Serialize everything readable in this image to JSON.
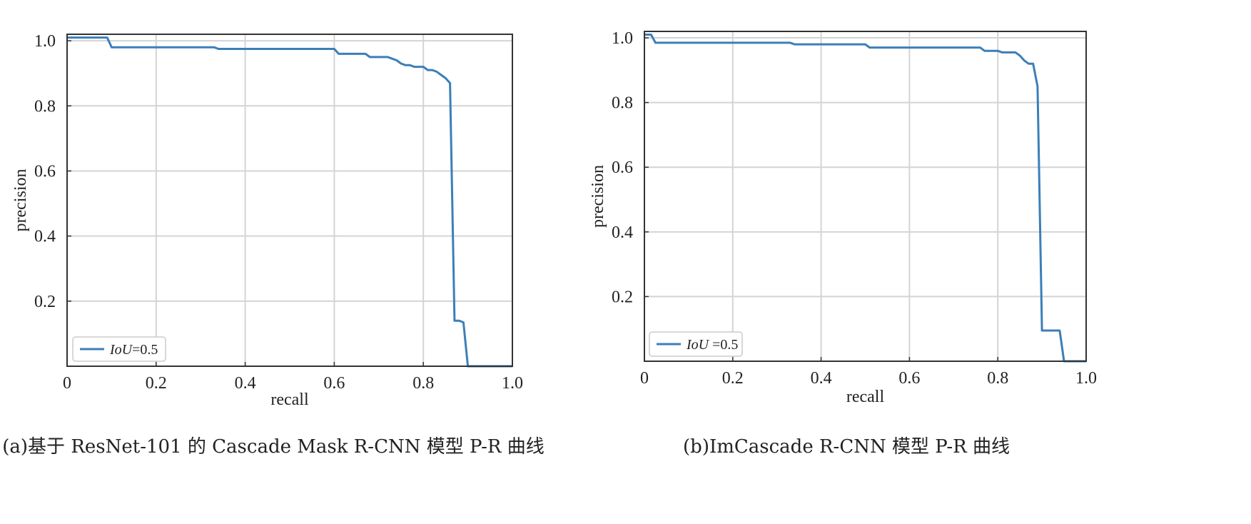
{
  "chart_data": [
    {
      "type": "line",
      "caption": "(a)基于 ResNet-101 的 Cascade Mask R-CNN 模型 P-R 曲线",
      "xlabel": "recall",
      "ylabel": "precision",
      "xlim": [
        0,
        1.0
      ],
      "ylim": [
        0.0,
        1.02
      ],
      "xticks": [
        0,
        0.2,
        0.4,
        0.6,
        0.8,
        1.0
      ],
      "xtick_labels": [
        "0",
        "0.2",
        "0.4",
        "0.6",
        "0.8",
        "1.0"
      ],
      "yticks": [
        0.2,
        0.4,
        0.6,
        0.8,
        1.0
      ],
      "ytick_labels": [
        "0.2",
        "0.4",
        "0.6",
        "0.8",
        "1.0"
      ],
      "grid": true,
      "legend_position": "bottom-left",
      "series": [
        {
          "name": "IoU=0.5",
          "legend_italic": "IoU",
          "legend_rest": "=0.5",
          "color": "#3b7fb8",
          "x": [
            0,
            0.09,
            0.1,
            0.33,
            0.34,
            0.6,
            0.61,
            0.67,
            0.68,
            0.72,
            0.73,
            0.74,
            0.75,
            0.76,
            0.77,
            0.78,
            0.8,
            0.81,
            0.82,
            0.83,
            0.84,
            0.85,
            0.86,
            0.87,
            0.88,
            0.89,
            0.9,
            1.0
          ],
          "y": [
            1.01,
            1.01,
            0.98,
            0.98,
            0.975,
            0.975,
            0.96,
            0.96,
            0.95,
            0.95,
            0.945,
            0.94,
            0.93,
            0.925,
            0.925,
            0.92,
            0.92,
            0.91,
            0.91,
            0.905,
            0.895,
            0.885,
            0.87,
            0.14,
            0.14,
            0.135,
            0.0,
            0.0
          ]
        }
      ]
    },
    {
      "type": "line",
      "caption": "(b)ImCascade R-CNN 模型 P-R 曲线",
      "xlabel": "recall",
      "ylabel": "precision",
      "xlim": [
        0,
        1.0
      ],
      "ylim": [
        0.0,
        1.02
      ],
      "xticks": [
        0,
        0.2,
        0.4,
        0.6,
        0.8,
        1.0
      ],
      "xtick_labels": [
        "0",
        "0.2",
        "0.4",
        "0.6",
        "0.8",
        "1.0"
      ],
      "yticks": [
        0.2,
        0.4,
        0.6,
        0.8,
        1.0
      ],
      "ytick_labels": [
        "0.2",
        "0.4",
        "0.6",
        "0.8",
        "1.0"
      ],
      "grid": true,
      "legend_position": "bottom-left",
      "series": [
        {
          "name": "IoU =0.5",
          "legend_italic": "IoU",
          "legend_rest": " =0.5",
          "color": "#3b7fb8",
          "x": [
            0,
            0.015,
            0.025,
            0.33,
            0.34,
            0.5,
            0.51,
            0.76,
            0.77,
            0.8,
            0.81,
            0.84,
            0.85,
            0.86,
            0.87,
            0.88,
            0.89,
            0.9,
            0.91,
            0.93,
            0.94,
            0.95,
            1.0
          ],
          "y": [
            1.01,
            1.01,
            0.985,
            0.985,
            0.98,
            0.98,
            0.97,
            0.97,
            0.96,
            0.96,
            0.955,
            0.955,
            0.945,
            0.93,
            0.92,
            0.92,
            0.85,
            0.095,
            0.095,
            0.095,
            0.095,
            0.0,
            0.0
          ]
        }
      ]
    }
  ]
}
